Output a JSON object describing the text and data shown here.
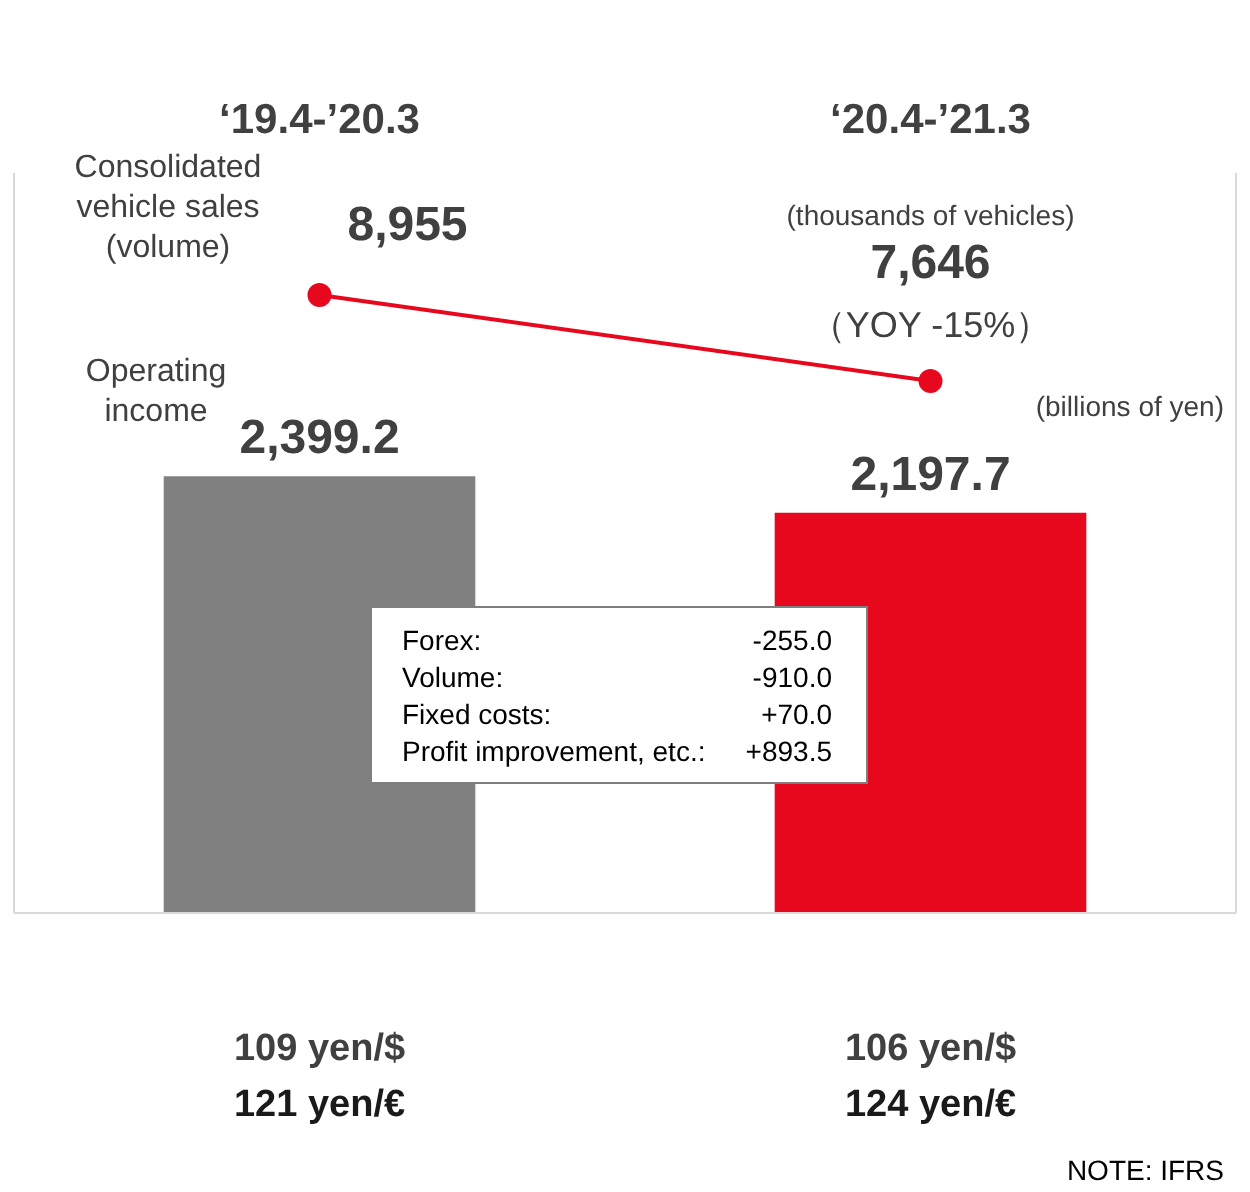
{
  "chart_data": {
    "type": "bar",
    "categories": [
      "‘19.4-’20.3",
      "‘20.4-’21.3"
    ],
    "series": [
      {
        "name": "Operating income",
        "colors": [
          "#808080",
          "#e8081e"
        ],
        "values": [
          2399.2,
          2197.7
        ],
        "value_labels": [
          "2,399.2",
          "2,197.7"
        ]
      },
      {
        "name": "Consolidated vehicle sales (volume)",
        "type": "line",
        "axis": "y2",
        "color": "#e8081e",
        "values": [
          8955,
          7646
        ],
        "value_labels": [
          "8,955",
          "7,646"
        ]
      }
    ],
    "ylim": [
      0,
      4060
    ],
    "y2lim": [
      -440,
      10790
    ],
    "tick_labels": "x",
    "grid": false,
    "legend": false,
    "marker": "circle",
    "line_style": "solid",
    "annotations": [
      "(thousands of vehicles)",
      "（YOY -15%）",
      "(billions of yen)",
      "Forex: -255.0",
      "Volume: -910.0",
      "Fixed costs: +70.0",
      "Profit improvement, etc.: +893.5",
      "109 yen/$",
      "121 yen/€",
      "106 yen/$",
      "124 yen/€",
      "NOTE: IFRS"
    ]
  }
}
